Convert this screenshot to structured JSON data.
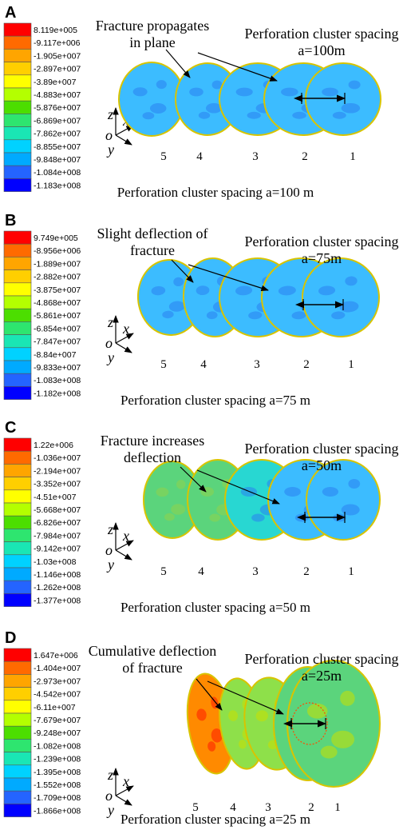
{
  "panels": [
    {
      "letter": "A",
      "legend": [
        "8.119e+005",
        "-9.117e+006",
        "-1.905e+007",
        "-2.897e+007",
        "-3.89e+007",
        "-4.883e+007",
        "-5.876e+007",
        "-6.869e+007",
        "-7.862e+007",
        "-8.855e+007",
        "-9.848e+007",
        "-1.084e+008",
        "-1.183e+008"
      ],
      "note_lines": [
        "Fracture propagates",
        "in plane"
      ],
      "spacing_lines": [
        "Perforation cluster spacing",
        "a=100m"
      ],
      "fracture_numbers": [
        "5",
        "4",
        "3",
        "2",
        "1"
      ],
      "caption": "Perforation cluster spacing a=100 m",
      "mode": "planar"
    },
    {
      "letter": "B",
      "legend": [
        "9.749e+005",
        "-8.956e+006",
        "-1.889e+007",
        "-2.882e+007",
        "-3.875e+007",
        "-4.868e+007",
        "-5.861e+007",
        "-6.854e+007",
        "-7.847e+007",
        "-8.84e+007",
        "-9.833e+007",
        "-1.083e+008",
        "-1.182e+008"
      ],
      "note_lines": [
        "Slight deflection of",
        "fracture"
      ],
      "spacing_lines": [
        "Perforation cluster spacing",
        "a=75m"
      ],
      "fracture_numbers": [
        "5",
        "4",
        "3",
        "2",
        "1"
      ],
      "caption": "Perforation cluster spacing a=75 m",
      "mode": "slight"
    },
    {
      "letter": "C",
      "legend": [
        "1.22e+006",
        "-1.036e+007",
        "-2.194e+007",
        "-3.352e+007",
        "-4.51e+007",
        "-5.668e+007",
        "-6.826e+007",
        "-7.984e+007",
        "-9.142e+007",
        "-1.03e+008",
        "-1.146e+008",
        "-1.262e+008",
        "-1.377e+008"
      ],
      "note_lines": [
        "Fracture increases",
        "deflection"
      ],
      "spacing_lines": [
        "Perforation cluster spacing",
        "a=50m"
      ],
      "fracture_numbers": [
        "5",
        "4",
        "3",
        "2",
        "1"
      ],
      "caption": "Perforation cluster spacing a=50 m",
      "mode": "increased"
    },
    {
      "letter": "D",
      "legend": [
        "1.647e+006",
        "-1.404e+007",
        "-2.973e+007",
        "-4.542e+007",
        "-6.11e+007",
        "-7.679e+007",
        "-9.248e+007",
        "-1.082e+008",
        "-1.239e+008",
        "-1.395e+008",
        "-1.552e+008",
        "-1.709e+008",
        "-1.866e+008"
      ],
      "note_lines": [
        "Cumulative deflection",
        "of fracture"
      ],
      "spacing_lines": [
        "Perforation cluster spacing",
        "a=25m"
      ],
      "fracture_numbers": [
        "5",
        "4",
        "3",
        "2",
        "1"
      ],
      "caption": "Perforation cluster spacing a=25 m",
      "mode": "cumulative"
    }
  ],
  "axes_labels": {
    "z": "z",
    "x": "x",
    "o": "o",
    "y": "y"
  },
  "colors": {
    "legend_scale": [
      "#ff0000",
      "#ff6a00",
      "#ffa500",
      "#ffcf00",
      "#ffff00",
      "#b4ff00",
      "#4cde00",
      "#2ee56f",
      "#1ae6b4",
      "#00d2ff",
      "#00aaff",
      "#2464ff",
      "#0000ff"
    ],
    "fracture_blue": "#3cbcff",
    "fracture_cyan": "#28d7d2",
    "fracture_green": "#5bd47c",
    "fracture_orange": "#ff8a00",
    "fracture_red": "#ff1a00",
    "rim": "#d8c400"
  }
}
